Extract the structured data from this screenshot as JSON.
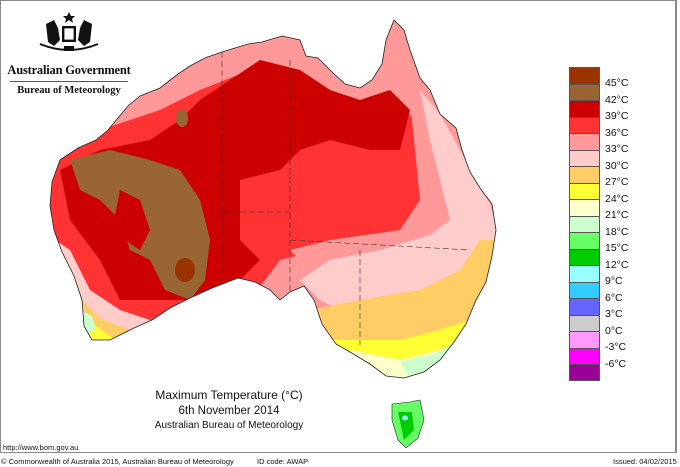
{
  "header": {
    "government": "Australian Government",
    "agency": "Bureau of Meteorology",
    "crest_icon": "coat-of-arms-icon"
  },
  "map": {
    "title": "Maximum Temperature (°C)",
    "date": "6th November 2014",
    "source": "Australian Bureau of Meteorology",
    "region": "Australia",
    "dominant_ranges": {
      "central_west_interior": "42-45°C",
      "pilbara_north_interior": "39-42°C",
      "queensland_interior": "36-39°C",
      "east_coast": "27-33°C",
      "victoria_south": "18-27°C",
      "tasmania": "12-21°C"
    }
  },
  "legend": {
    "items": [
      {
        "label": "45°C",
        "color": "#993300"
      },
      {
        "label": "42°C",
        "color": "#996633"
      },
      {
        "label": "39°C",
        "color": "#cc0000"
      },
      {
        "label": "36°C",
        "color": "#ff3333"
      },
      {
        "label": "33°C",
        "color": "#ff9999"
      },
      {
        "label": "30°C",
        "color": "#ffcccc"
      },
      {
        "label": "27°C",
        "color": "#ffcc66"
      },
      {
        "label": "24°C",
        "color": "#ffff33"
      },
      {
        "label": "21°C",
        "color": "#ffffcc"
      },
      {
        "label": "18°C",
        "color": "#ccffcc"
      },
      {
        "label": "15°C",
        "color": "#66ff66"
      },
      {
        "label": "12°C",
        "color": "#00cc00"
      },
      {
        "label": "9°C",
        "color": "#99ffff"
      },
      {
        "label": "6°C",
        "color": "#33ccff"
      },
      {
        "label": "3°C",
        "color": "#6666ff"
      },
      {
        "label": "0°C",
        "color": "#cccccc"
      },
      {
        "label": "-3°C",
        "color": "#ff99ff"
      },
      {
        "label": "-6°C",
        "color": "#ff00ff"
      },
      {
        "label": "",
        "color": "#990099"
      }
    ]
  },
  "footer": {
    "url": "http://www.bom.gov.au",
    "copyright": "© Commonwealth of Australia 2015, Australian Bureau of Meteorology",
    "id_code": "ID code: AWAP",
    "issued": "Issued: 04/02/2015"
  }
}
